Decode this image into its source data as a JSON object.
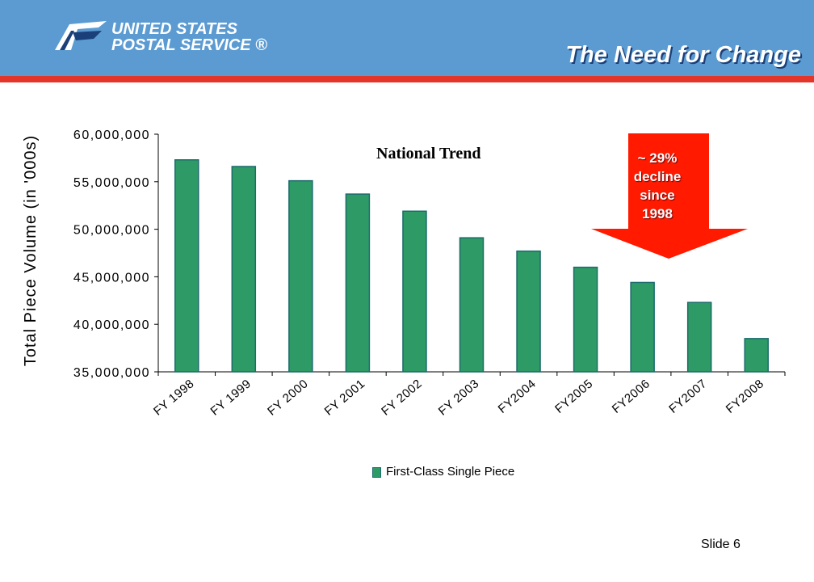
{
  "header": {
    "org_line1": "UNITED STATES",
    "org_line2": "POSTAL SERVICE ®",
    "slide_title": "The Need for Change",
    "brand_color": "#5b9bd2",
    "accent_color": "#e4352a"
  },
  "annotations": {
    "national_trend": "National Trend",
    "arrow_lines": [
      "~ 29%",
      "decline",
      "since",
      "1998"
    ],
    "arrow_color": "#ff1a00"
  },
  "footer": {
    "slide_number": "Slide 6"
  },
  "chart_data": {
    "type": "bar",
    "title": "",
    "ylabel": "Total Piece Volume (in '000s)",
    "xlabel": "",
    "ylim": [
      35000000,
      60000000
    ],
    "yticks": [
      35000000,
      40000000,
      45000000,
      50000000,
      55000000,
      60000000
    ],
    "ytick_labels": [
      "35,000,000",
      "40,000,000",
      "45,000,000",
      "50,000,000",
      "55,000,000",
      "60,000,000"
    ],
    "categories": [
      "FY 1998",
      "FY 1999",
      "FY 2000",
      "FY 2001",
      "FY 2002",
      "FY 2003",
      "FY2004",
      "FY2005",
      "FY2006",
      "FY2007",
      "FY2008"
    ],
    "series": [
      {
        "name": "First-Class Single Piece",
        "color": "#2e9a66",
        "values": [
          57300000,
          56600000,
          55100000,
          53700000,
          51900000,
          49100000,
          47700000,
          46000000,
          44400000,
          42300000,
          38500000
        ]
      }
    ],
    "legend": "bottom",
    "grid": false
  }
}
